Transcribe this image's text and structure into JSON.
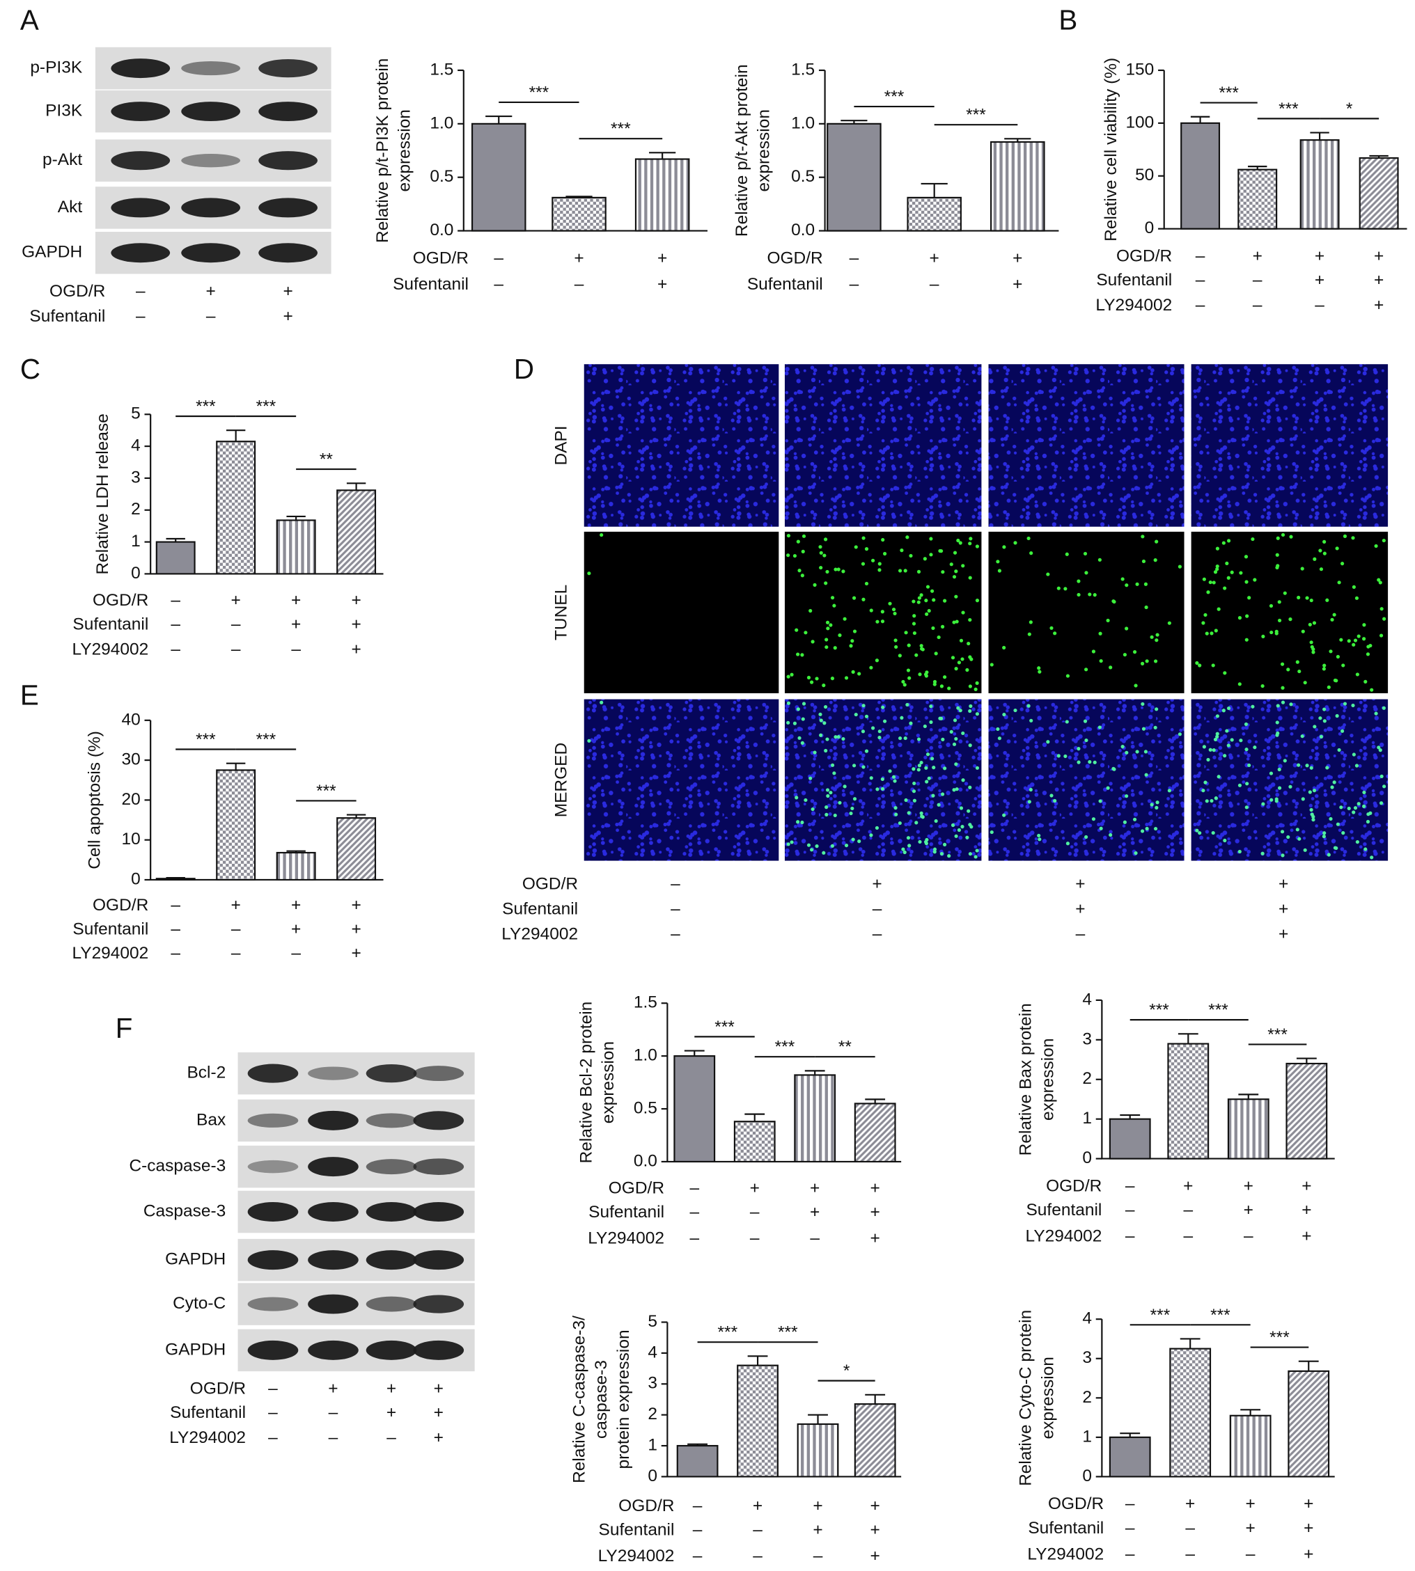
{
  "panels": [
    "A",
    "B",
    "C",
    "D",
    "E",
    "F"
  ],
  "blots": [
    {
      "labels": [
        "p-PI3K",
        "PI3K",
        "p-Akt",
        "Akt",
        "GAPDH"
      ],
      "conditions": [
        {
          "name": "OGD/R",
          "marks": [
            "–",
            "+",
            "+"
          ]
        },
        {
          "name": "Sufentanil",
          "marks": [
            "–",
            "–",
            "+"
          ]
        }
      ]
    },
    {
      "labels": [
        "Bcl-2",
        "Bax",
        "C-caspase-3",
        "Caspase-3",
        "GAPDH",
        "Cyto-C",
        "GAPDH"
      ],
      "conditions": [
        {
          "name": "OGD/R",
          "marks": [
            "–",
            "+",
            "+",
            "+"
          ]
        },
        {
          "name": "Sufentanil",
          "marks": [
            "–",
            "–",
            "+",
            "+"
          ]
        },
        {
          "name": "LY294002",
          "marks": [
            "–",
            "–",
            "–",
            "+"
          ]
        }
      ]
    }
  ],
  "images": {
    "row_labels": [
      "DAPI",
      "TUNEL",
      "MERGED"
    ],
    "conditions": [
      {
        "name": "OGD/R",
        "marks": [
          "–",
          "+",
          "+",
          "+"
        ]
      },
      {
        "name": "Sufentanil",
        "marks": [
          "–",
          "–",
          "+",
          "+"
        ]
      },
      {
        "name": "LY294002",
        "marks": [
          "–",
          "–",
          "–",
          "+"
        ]
      }
    ]
  },
  "chart_data": [
    {
      "type": "bar",
      "ylabel": [
        "Relative p/t-PI3K protein",
        "expression"
      ],
      "color": "#8c8c96",
      "values": [
        1.0,
        0.31,
        0.67
      ],
      "errors": [
        0.07,
        0.01,
        0.06
      ],
      "ylim": [
        0,
        1.5
      ],
      "yticks": [
        {
          "value": 0,
          "label": "0.0"
        },
        0.5,
        {
          "value": 1,
          "label": "1.0"
        },
        1.5
      ],
      "significance": [
        {
          "text": "***",
          "pair": [
            0,
            1
          ]
        },
        {
          "text": "***",
          "pair": [
            1,
            2
          ]
        }
      ],
      "conditions": [
        {
          "name": "OGD/R",
          "marks": [
            "–",
            "+",
            "+"
          ]
        },
        {
          "name": "Sufentanil",
          "marks": [
            "–",
            "–",
            "+"
          ]
        }
      ]
    },
    {
      "type": "bar",
      "ylabel": [
        "Relative p/t-Akt protein",
        "expression"
      ],
      "color": "#8c8c96",
      "values": [
        1.0,
        0.31,
        0.83
      ],
      "errors": [
        0.03,
        0.13,
        0.03
      ],
      "ylim": [
        0,
        1.5
      ],
      "yticks": [
        {
          "value": 0,
          "label": "0.0"
        },
        0.5,
        {
          "value": 1,
          "label": "1.0"
        },
        1.5
      ],
      "significance": [
        {
          "text": "***",
          "pair": [
            0,
            1
          ]
        },
        {
          "text": "***",
          "pair": [
            1,
            2
          ]
        }
      ],
      "conditions": [
        {
          "name": "OGD/R",
          "marks": [
            "–",
            "+",
            "+"
          ]
        },
        {
          "name": "Sufentanil",
          "marks": [
            "–",
            "–",
            "+"
          ]
        }
      ]
    },
    {
      "type": "bar",
      "ylabel": [
        "Relative cell viability (%)"
      ],
      "color": "#8c8c96",
      "values": [
        100,
        56,
        84,
        67
      ],
      "errors": [
        6,
        3,
        7,
        2
      ],
      "ylim": [
        0,
        150
      ],
      "yticks": [
        0,
        50,
        100,
        150
      ],
      "significance": [
        {
          "text": "***",
          "pair": [
            0,
            1
          ]
        },
        {
          "text": "***",
          "pair": [
            1,
            2
          ]
        },
        {
          "text": "*",
          "pair": [
            2,
            3
          ]
        }
      ],
      "conditions": [
        {
          "name": "OGD/R",
          "marks": [
            "–",
            "+",
            "+",
            "+"
          ]
        },
        {
          "name": "Sufentanil",
          "marks": [
            "–",
            "–",
            "+",
            "+"
          ]
        },
        {
          "name": "LY294002",
          "marks": [
            "–",
            "–",
            "–",
            "+"
          ]
        }
      ]
    },
    {
      "type": "bar",
      "ylabel": [
        "Relative LDH release"
      ],
      "color": "#8c8c96",
      "values": [
        1.0,
        4.15,
        1.68,
        2.62
      ],
      "errors": [
        0.1,
        0.35,
        0.12,
        0.22
      ],
      "ylim": [
        0,
        5
      ],
      "yticks": [
        0,
        1,
        2,
        3,
        4,
        5
      ],
      "significance": [
        {
          "text": "***",
          "pair": [
            0,
            1
          ]
        },
        {
          "text": "***",
          "pair": [
            1,
            2
          ]
        },
        {
          "text": "**",
          "pair": [
            2,
            3
          ]
        }
      ],
      "conditions": [
        {
          "name": "OGD/R",
          "marks": [
            "–",
            "+",
            "+",
            "+"
          ]
        },
        {
          "name": "Sufentanil",
          "marks": [
            "–",
            "–",
            "+",
            "+"
          ]
        },
        {
          "name": "LY294002",
          "marks": [
            "–",
            "–",
            "–",
            "+"
          ]
        }
      ]
    },
    {
      "type": "bar",
      "ylabel": [
        "Cell apoptosis (%)"
      ],
      "color": "#8c8c96",
      "values": [
        0.3,
        27.5,
        6.8,
        15.5
      ],
      "errors": [
        0.2,
        1.7,
        0.4,
        0.8
      ],
      "ylim": [
        0,
        40
      ],
      "yticks": [
        0,
        10,
        20,
        30,
        40
      ],
      "significance": [
        {
          "text": "***",
          "pair": [
            0,
            1
          ]
        },
        {
          "text": "***",
          "pair": [
            1,
            2
          ]
        },
        {
          "text": "***",
          "pair": [
            2,
            3
          ]
        }
      ],
      "conditions": [
        {
          "name": "OGD/R",
          "marks": [
            "–",
            "+",
            "+",
            "+"
          ]
        },
        {
          "name": "Sufentanil",
          "marks": [
            "–",
            "–",
            "+",
            "+"
          ]
        },
        {
          "name": "LY294002",
          "marks": [
            "–",
            "–",
            "–",
            "+"
          ]
        }
      ]
    },
    {
      "type": "bar",
      "ylabel": [
        "Relative Bcl-2 protein",
        "expression"
      ],
      "color": "#8c8c96",
      "values": [
        1.0,
        0.38,
        0.82,
        0.55
      ],
      "errors": [
        0.05,
        0.07,
        0.04,
        0.04
      ],
      "ylim": [
        0,
        1.5
      ],
      "yticks": [
        {
          "value": 0,
          "label": "0.0"
        },
        0.5,
        {
          "value": 1,
          "label": "1.0"
        },
        1.5
      ],
      "significance": [
        {
          "text": "***",
          "pair": [
            0,
            1
          ]
        },
        {
          "text": "***",
          "pair": [
            1,
            2
          ]
        },
        {
          "text": "**",
          "pair": [
            2,
            3
          ]
        }
      ],
      "conditions": [
        {
          "name": "OGD/R",
          "marks": [
            "–",
            "+",
            "+",
            "+"
          ]
        },
        {
          "name": "Sufentanil",
          "marks": [
            "–",
            "–",
            "+",
            "+"
          ]
        },
        {
          "name": "LY294002",
          "marks": [
            "–",
            "–",
            "–",
            "+"
          ]
        }
      ]
    },
    {
      "type": "bar",
      "ylabel": [
        "Relative Bax protein",
        "expression"
      ],
      "color": "#8c8c96",
      "values": [
        1.0,
        2.9,
        1.5,
        2.4
      ],
      "errors": [
        0.1,
        0.25,
        0.12,
        0.13
      ],
      "ylim": [
        0,
        4
      ],
      "yticks": [
        0,
        1,
        2,
        3,
        4
      ],
      "significance": [
        {
          "text": "***",
          "pair": [
            0,
            1
          ]
        },
        {
          "text": "***",
          "pair": [
            1,
            2
          ]
        },
        {
          "text": "***",
          "pair": [
            2,
            3
          ]
        }
      ],
      "conditions": [
        {
          "name": "OGD/R",
          "marks": [
            "–",
            "+",
            "+",
            "+"
          ]
        },
        {
          "name": "Sufentanil",
          "marks": [
            "–",
            "–",
            "+",
            "+"
          ]
        },
        {
          "name": "LY294002",
          "marks": [
            "–",
            "–",
            "–",
            "+"
          ]
        }
      ]
    },
    {
      "type": "bar",
      "ylabel": [
        "Relative C-caspase-3/",
        "caspase-3",
        "protein expression"
      ],
      "color": "#8c8c96",
      "values": [
        1.0,
        3.6,
        1.7,
        2.35
      ],
      "errors": [
        0.05,
        0.3,
        0.3,
        0.3
      ],
      "ylim": [
        0,
        5
      ],
      "yticks": [
        0,
        1,
        2,
        3,
        4,
        5
      ],
      "significance": [
        {
          "text": "***",
          "pair": [
            0,
            1
          ]
        },
        {
          "text": "***",
          "pair": [
            1,
            2
          ]
        },
        {
          "text": "*",
          "pair": [
            2,
            3
          ]
        }
      ],
      "conditions": [
        {
          "name": "OGD/R",
          "marks": [
            "–",
            "+",
            "+",
            "+"
          ]
        },
        {
          "name": "Sufentanil",
          "marks": [
            "–",
            "–",
            "+",
            "+"
          ]
        },
        {
          "name": "LY294002",
          "marks": [
            "–",
            "–",
            "–",
            "+"
          ]
        }
      ]
    },
    {
      "type": "bar",
      "ylabel": [
        "Relative Cyto-C protein",
        "expression"
      ],
      "color": "#8c8c96",
      "values": [
        1.0,
        3.25,
        1.55,
        2.68
      ],
      "errors": [
        0.1,
        0.25,
        0.15,
        0.25
      ],
      "ylim": [
        0,
        4
      ],
      "yticks": [
        0,
        1,
        2,
        3,
        4
      ],
      "significance": [
        {
          "text": "***",
          "pair": [
            0,
            1
          ]
        },
        {
          "text": "***",
          "pair": [
            1,
            2
          ]
        },
        {
          "text": "***",
          "pair": [
            2,
            3
          ]
        }
      ],
      "conditions": [
        {
          "name": "OGD/R",
          "marks": [
            "–",
            "+",
            "+",
            "+"
          ]
        },
        {
          "name": "Sufentanil",
          "marks": [
            "–",
            "–",
            "+",
            "+"
          ]
        },
        {
          "name": "LY294002",
          "marks": [
            "–",
            "–",
            "–",
            "+"
          ]
        }
      ]
    }
  ]
}
